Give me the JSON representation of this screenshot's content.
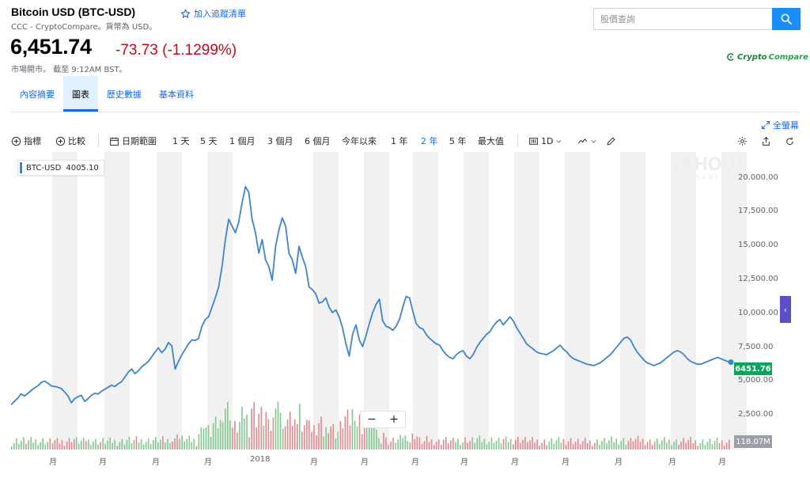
{
  "quote": {
    "title": "Bitcoin USD (BTC-USD)",
    "watchlist_label": "加入追蹤清單",
    "subline": "CCC - CryptoCompare。貨幣為 USD。",
    "price": "6,451.74",
    "change": "-73.73 (-1.1299%)",
    "market_status": "市場開市。 截至 9:12AM BST。"
  },
  "search": {
    "placeholder": "股價查詢"
  },
  "provider_logo": {
    "part1": "Crypto",
    "part2": "Compare"
  },
  "tabs": [
    {
      "label": "內容摘要",
      "active": false
    },
    {
      "label": "圖表",
      "active": true
    },
    {
      "label": "歷史數據",
      "active": false
    },
    {
      "label": "基本資料",
      "active": false
    }
  ],
  "toolbar": {
    "fullscreen_label": "全螢幕",
    "indicators_label": "指標",
    "compare_label": "比較",
    "date_range_label": "日期範圍",
    "ranges": [
      "1 天",
      "5 天",
      "1 個月",
      "3 個月",
      "6 個月",
      "今年以來",
      "1 年",
      "2 年",
      "5 年",
      "最大值"
    ],
    "selected_range": "2 年",
    "interval_label": "1D"
  },
  "legend": {
    "symbol": "BTC-USD",
    "value": "4005.10"
  },
  "watermark": {
    "line1": "YAHOO!",
    "line2": "FINANCE"
  },
  "colors": {
    "line": "#3a85d0",
    "up_volume": "#7fc98f",
    "down_volume": "#e3878d",
    "band": "#f1f1f1",
    "price_tag": "#00a85a"
  },
  "price_tag": "6451.76",
  "volume_tag": "118.07M",
  "chart_data": {
    "type": "line",
    "title": "",
    "series": [
      {
        "name": "BTC-USD",
        "values": [
          3300,
          3550,
          3800,
          4100,
          3950,
          4150,
          4350,
          4550,
          4700,
          4950,
          5050,
          4900,
          4700,
          4650,
          4600,
          4500,
          4250,
          3950,
          3450,
          3750,
          3900,
          4000,
          3550,
          3750,
          4000,
          4150,
          4100,
          4300,
          4450,
          4600,
          4750,
          4650,
          4850,
          5000,
          5350,
          5700,
          5950,
          5600,
          5800,
          6100,
          6300,
          6500,
          6850,
          7200,
          7500,
          7150,
          7400,
          7900,
          7650,
          5950,
          6500,
          7000,
          7400,
          7800,
          8100,
          8050,
          8200,
          9100,
          9600,
          9800,
          10500,
          11200,
          12000,
          13500,
          15500,
          17000,
          16500,
          16000,
          16800,
          18200,
          19400,
          19000,
          17000,
          16000,
          14500,
          15500,
          14000,
          13500,
          12500,
          15000,
          16200,
          17100,
          16500,
          14500,
          14000,
          13000,
          15000,
          14200,
          13500,
          12000,
          11800,
          11500,
          10800,
          10900,
          11200,
          10500,
          10100,
          10300,
          9800,
          9000,
          7800,
          6900,
          8500,
          9200,
          8100,
          7600,
          8400,
          9300,
          10100,
          10700,
          11100,
          9500,
          9100,
          9000,
          8800,
          9100,
          9600,
          10500,
          11300,
          11200,
          10200,
          9300,
          9000,
          8900,
          8500,
          8200,
          8000,
          7800,
          7700,
          7300,
          7000,
          6800,
          6700,
          7000,
          7200,
          7300,
          6900,
          6700,
          7000,
          7500,
          7900,
          8200,
          8500,
          8700,
          9100,
          9400,
          9600,
          9200,
          9500,
          9800,
          9500,
          9000,
          8600,
          8200,
          7800,
          7600,
          7400,
          7200,
          7100,
          7050,
          7000,
          7150,
          7300,
          7500,
          7700,
          7400,
          7200,
          6900,
          6700,
          6600,
          6500,
          6400,
          6300,
          6250,
          6200,
          6300,
          6400,
          6600,
          6800,
          7000,
          7300,
          7600,
          7900,
          8200,
          8300,
          8100,
          7600,
          7200,
          6900,
          6600,
          6400,
          6300,
          6200,
          6300,
          6400,
          6600,
          6800,
          7000,
          7200,
          7300,
          7200,
          7000,
          6700,
          6500,
          6400,
          6300,
          6300,
          6400,
          6500,
          6600,
          6700,
          6800,
          6700,
          6600,
          6500,
          6450
        ]
      }
    ],
    "y_axis_ticks": [
      "20,000.00",
      "17,500.00",
      "15,000.00",
      "12,500.00",
      "10,000.00",
      "7,500.00",
      "5,000.00",
      "2,500.00"
    ],
    "ylim": [
      0,
      21500
    ],
    "x_tick_labels": [
      "月",
      "月",
      "月",
      "月",
      "2018",
      "月",
      "月",
      "月",
      "月",
      "月",
      "月",
      "月",
      "月",
      "月"
    ],
    "xlabel": "",
    "ylabel": "",
    "grid": false
  }
}
